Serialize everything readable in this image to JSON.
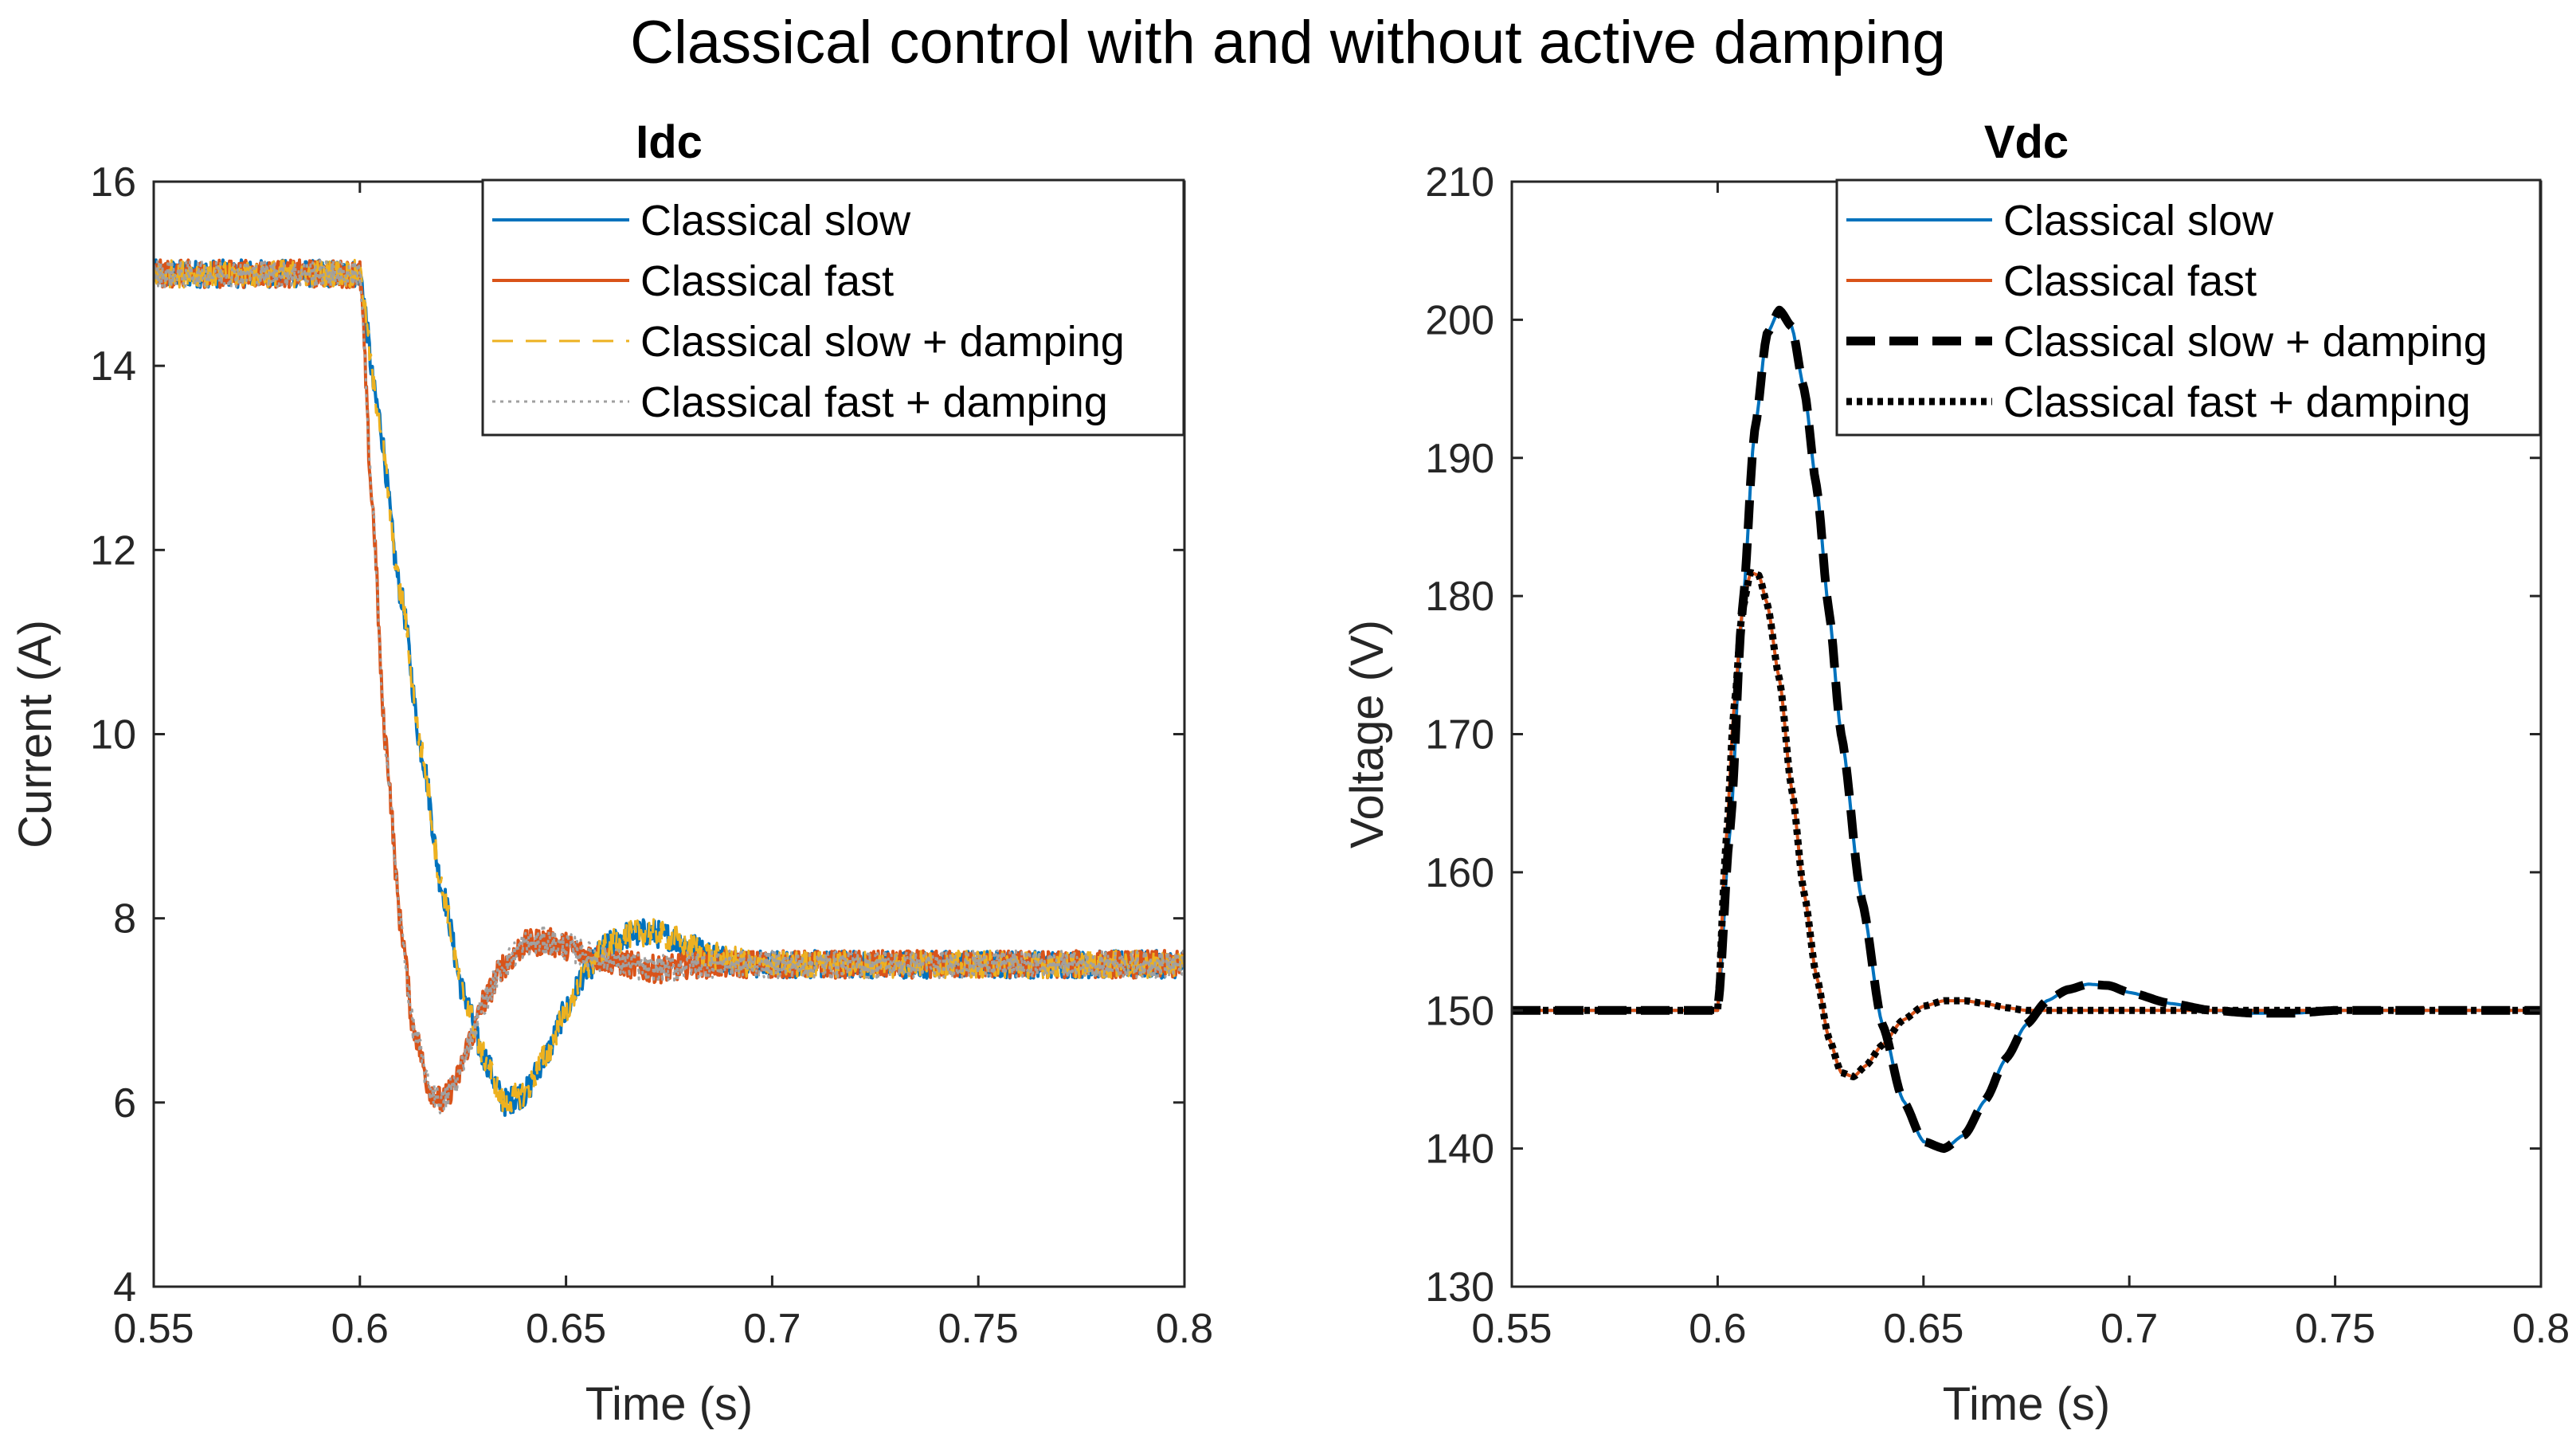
{
  "suptitle": "Classical control with and without active damping",
  "colors": {
    "slow": "#0072BD",
    "fast": "#D95319",
    "slow_damping_left": "#EDB120",
    "fast_damping_left": "#A0A0A0",
    "damping_right": "#000000"
  },
  "chart_data": [
    {
      "type": "line",
      "title": "Idc",
      "xlabel": "Time (s)",
      "ylabel": "Current (A)",
      "xlim": [
        0.55,
        0.8
      ],
      "ylim": [
        4,
        16
      ],
      "xticks": [
        "0.55",
        "0.6",
        "0.65",
        "0.7",
        "0.75",
        "0.8"
      ],
      "yticks": [
        "4",
        "6",
        "8",
        "10",
        "12",
        "14",
        "16"
      ],
      "legend_position": "top-right",
      "series": [
        {
          "name": "Classical slow",
          "style": "solid",
          "color_key": "slow",
          "x": [
            0.55,
            0.6,
            0.604,
            0.61,
            0.615,
            0.62,
            0.625,
            0.63,
            0.635,
            0.64,
            0.645,
            0.65,
            0.655,
            0.66,
            0.665,
            0.67,
            0.675,
            0.68,
            0.685,
            0.69,
            0.695,
            0.7,
            0.71,
            0.72,
            0.8
          ],
          "y": [
            15.0,
            15.0,
            13.6,
            11.5,
            9.8,
            8.3,
            7.2,
            6.5,
            6.0,
            6.1,
            6.5,
            7.0,
            7.45,
            7.7,
            7.82,
            7.85,
            7.8,
            7.7,
            7.6,
            7.55,
            7.5,
            7.5,
            7.5,
            7.5,
            7.5
          ],
          "noise": 0.15
        },
        {
          "name": "Classical fast",
          "style": "solid",
          "color_key": "fast",
          "x": [
            0.55,
            0.6,
            0.603,
            0.606,
            0.61,
            0.613,
            0.617,
            0.62,
            0.623,
            0.627,
            0.63,
            0.635,
            0.64,
            0.645,
            0.65,
            0.655,
            0.66,
            0.665,
            0.67,
            0.675,
            0.68,
            0.69,
            0.7,
            0.8
          ],
          "y": [
            15.0,
            15.0,
            12.5,
            10.0,
            7.9,
            6.8,
            6.15,
            6.0,
            6.2,
            6.7,
            7.1,
            7.5,
            7.72,
            7.75,
            7.7,
            7.6,
            7.55,
            7.5,
            7.45,
            7.45,
            7.5,
            7.5,
            7.5,
            7.5
          ],
          "noise": 0.15
        },
        {
          "name": "Classical slow + damping",
          "style": "dashed",
          "color_key": "slow_damping_left",
          "x": [
            0.55,
            0.6,
            0.604,
            0.61,
            0.615,
            0.62,
            0.625,
            0.63,
            0.635,
            0.64,
            0.645,
            0.65,
            0.655,
            0.66,
            0.665,
            0.67,
            0.675,
            0.68,
            0.685,
            0.69,
            0.695,
            0.7,
            0.71,
            0.72,
            0.8
          ],
          "y": [
            15.0,
            15.0,
            13.6,
            11.5,
            9.8,
            8.3,
            7.2,
            6.5,
            6.0,
            6.1,
            6.5,
            7.0,
            7.45,
            7.7,
            7.82,
            7.85,
            7.8,
            7.7,
            7.6,
            7.55,
            7.5,
            7.5,
            7.5,
            7.5,
            7.5
          ],
          "noise": 0.15
        },
        {
          "name": "Classical fast + damping",
          "style": "dotted",
          "color_key": "fast_damping_left",
          "x": [
            0.55,
            0.6,
            0.603,
            0.606,
            0.61,
            0.613,
            0.617,
            0.62,
            0.623,
            0.627,
            0.63,
            0.635,
            0.64,
            0.645,
            0.65,
            0.655,
            0.66,
            0.665,
            0.67,
            0.675,
            0.68,
            0.69,
            0.7,
            0.8
          ],
          "y": [
            15.0,
            15.0,
            12.5,
            10.0,
            7.9,
            6.8,
            6.15,
            6.0,
            6.2,
            6.7,
            7.1,
            7.5,
            7.72,
            7.75,
            7.7,
            7.6,
            7.55,
            7.5,
            7.45,
            7.45,
            7.5,
            7.5,
            7.5,
            7.5
          ],
          "noise": 0.15
        }
      ]
    },
    {
      "type": "line",
      "title": "Vdc",
      "xlabel": "Time (s)",
      "ylabel": "Voltage (V)",
      "xlim": [
        0.55,
        0.8
      ],
      "ylim": [
        130,
        210
      ],
      "xticks": [
        "0.55",
        "0.6",
        "0.65",
        "0.7",
        "0.75",
        "0.8"
      ],
      "yticks": [
        "130",
        "140",
        "150",
        "160",
        "170",
        "180",
        "190",
        "200",
        "210"
      ],
      "legend_position": "top-right",
      "series": [
        {
          "name": "Classical slow",
          "style": "solid",
          "color_key": "slow",
          "x": [
            0.55,
            0.6,
            0.603,
            0.606,
            0.609,
            0.612,
            0.615,
            0.618,
            0.621,
            0.624,
            0.627,
            0.63,
            0.635,
            0.64,
            0.645,
            0.65,
            0.655,
            0.66,
            0.665,
            0.67,
            0.675,
            0.68,
            0.685,
            0.69,
            0.695,
            0.7,
            0.71,
            0.72,
            0.73,
            0.74,
            0.75,
            0.8
          ],
          "y": [
            150,
            150,
            163,
            179,
            192,
            199,
            200.7,
            199.5,
            195,
            188,
            179,
            170,
            158,
            149,
            143.5,
            140.5,
            140,
            141,
            143.5,
            146.5,
            149,
            150.7,
            151.5,
            151.9,
            151.8,
            151.3,
            150.5,
            150,
            149.8,
            149.8,
            150,
            150
          ]
        },
        {
          "name": "Classical fast",
          "style": "solid",
          "color_key": "fast",
          "x": [
            0.55,
            0.6,
            0.602,
            0.604,
            0.606,
            0.608,
            0.61,
            0.612,
            0.615,
            0.618,
            0.621,
            0.624,
            0.627,
            0.63,
            0.633,
            0.636,
            0.64,
            0.645,
            0.65,
            0.655,
            0.66,
            0.665,
            0.67,
            0.675,
            0.68,
            0.69,
            0.7,
            0.8
          ],
          "y": [
            150,
            150,
            162,
            172,
            179,
            181.7,
            181.5,
            179.5,
            174,
            166,
            158.5,
            152.5,
            148,
            145.5,
            145.2,
            146,
            147.5,
            149.3,
            150.3,
            150.7,
            150.7,
            150.5,
            150.2,
            150,
            150,
            150,
            150,
            150
          ]
        },
        {
          "name": "Classical slow + damping",
          "style": "dashed",
          "color_key": "damping_right",
          "x": [
            0.55,
            0.6,
            0.603,
            0.606,
            0.609,
            0.612,
            0.615,
            0.618,
            0.621,
            0.624,
            0.627,
            0.63,
            0.635,
            0.64,
            0.645,
            0.65,
            0.655,
            0.66,
            0.665,
            0.67,
            0.675,
            0.68,
            0.685,
            0.69,
            0.695,
            0.7,
            0.71,
            0.72,
            0.73,
            0.74,
            0.75,
            0.8
          ],
          "y": [
            150,
            150,
            163,
            179,
            192,
            199,
            200.7,
            199.5,
            195,
            188,
            179,
            170,
            158,
            149,
            143.5,
            140.5,
            140,
            141,
            143.5,
            146.5,
            149,
            150.7,
            151.5,
            151.9,
            151.8,
            151.3,
            150.5,
            150,
            149.8,
            149.8,
            150,
            150
          ]
        },
        {
          "name": "Classical fast + damping",
          "style": "dotted",
          "color_key": "damping_right",
          "x": [
            0.55,
            0.6,
            0.602,
            0.604,
            0.606,
            0.608,
            0.61,
            0.612,
            0.615,
            0.618,
            0.621,
            0.624,
            0.627,
            0.63,
            0.633,
            0.636,
            0.64,
            0.645,
            0.65,
            0.655,
            0.66,
            0.665,
            0.67,
            0.675,
            0.68,
            0.69,
            0.7,
            0.8
          ],
          "y": [
            150,
            150,
            162,
            172,
            179,
            181.7,
            181.5,
            179.5,
            174,
            166,
            158.5,
            152.5,
            148,
            145.5,
            145.2,
            146,
            147.5,
            149.3,
            150.3,
            150.7,
            150.7,
            150.5,
            150.2,
            150,
            150,
            150,
            150,
            150
          ]
        }
      ]
    }
  ]
}
